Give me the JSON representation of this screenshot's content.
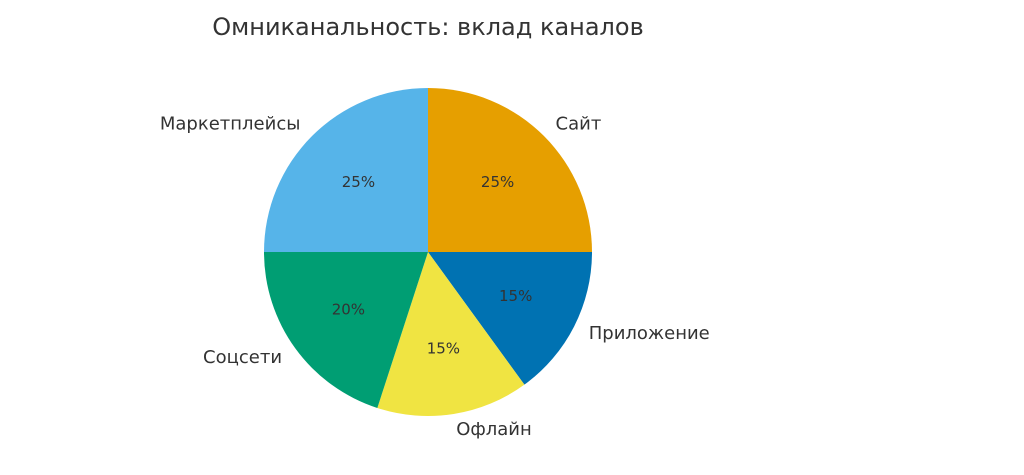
{
  "chart_data": {
    "type": "pie",
    "title": "Омниканальность: вклад каналов",
    "categories": [
      "Сайт",
      "Приложение",
      "Офлайн",
      "Соцсети",
      "Маркетплейсы"
    ],
    "values": [
      25,
      15,
      15,
      20,
      25
    ],
    "value_labels": [
      "25%",
      "15%",
      "15%",
      "20%",
      "25%"
    ],
    "colors": [
      "#E69F00",
      "#0072B2",
      "#F0E442",
      "#009E73",
      "#56B4E9"
    ]
  }
}
